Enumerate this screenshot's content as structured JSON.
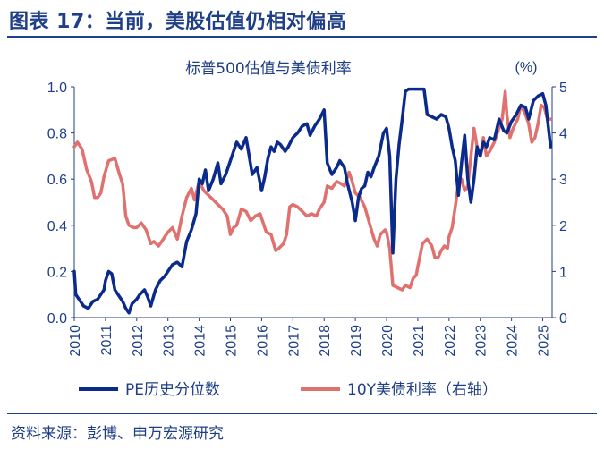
{
  "header": {
    "figure_title": "图表 17：当前，美股估值仍相对偏高"
  },
  "footer": {
    "source": "资料来源：彭博、申万宏源研究"
  },
  "colors": {
    "navy": "#1f3f86",
    "pe_line": "#0a2a8c",
    "yield_line": "#e0716f"
  },
  "chart_data": {
    "type": "line",
    "title": "标普500估值与美债利率",
    "right_unit": "(%)",
    "x_ticks": [
      "2010",
      "2011",
      "2012",
      "2013",
      "2014",
      "2015",
      "2016",
      "2017",
      "2018",
      "2019",
      "2020",
      "2021",
      "2022",
      "2023",
      "2024",
      "2025"
    ],
    "xlim": [
      2010,
      2025.3
    ],
    "y_left": {
      "lim": [
        0,
        1.0
      ],
      "ticks": [
        "0.0",
        "0.2",
        "0.4",
        "0.6",
        "0.8",
        "1.0"
      ]
    },
    "y_right": {
      "lim": [
        0,
        5
      ],
      "ticks": [
        "0",
        "1",
        "2",
        "3",
        "4",
        "5"
      ]
    },
    "legend_position": "bottom",
    "series": [
      {
        "name": "PE历史分位数",
        "axis": "left",
        "color": "#0a2a8c",
        "points": [
          [
            2010.0,
            0.2
          ],
          [
            2010.05,
            0.1
          ],
          [
            2010.15,
            0.08
          ],
          [
            2010.3,
            0.05
          ],
          [
            2010.45,
            0.04
          ],
          [
            2010.6,
            0.07
          ],
          [
            2010.75,
            0.08
          ],
          [
            2010.85,
            0.1
          ],
          [
            2010.95,
            0.12
          ],
          [
            2011.0,
            0.16
          ],
          [
            2011.1,
            0.2
          ],
          [
            2011.2,
            0.19
          ],
          [
            2011.3,
            0.12
          ],
          [
            2011.4,
            0.1
          ],
          [
            2011.55,
            0.07
          ],
          [
            2011.65,
            0.04
          ],
          [
            2011.75,
            0.02
          ],
          [
            2011.85,
            0.06
          ],
          [
            2012.0,
            0.08
          ],
          [
            2012.1,
            0.1
          ],
          [
            2012.25,
            0.12
          ],
          [
            2012.35,
            0.09
          ],
          [
            2012.45,
            0.05
          ],
          [
            2012.6,
            0.12
          ],
          [
            2012.75,
            0.16
          ],
          [
            2012.9,
            0.18
          ],
          [
            2013.0,
            0.2
          ],
          [
            2013.15,
            0.23
          ],
          [
            2013.3,
            0.24
          ],
          [
            2013.45,
            0.22
          ],
          [
            2013.6,
            0.33
          ],
          [
            2013.75,
            0.38
          ],
          [
            2013.9,
            0.45
          ],
          [
            2014.0,
            0.6
          ],
          [
            2014.1,
            0.58
          ],
          [
            2014.2,
            0.64
          ],
          [
            2014.3,
            0.55
          ],
          [
            2014.45,
            0.6
          ],
          [
            2014.6,
            0.67
          ],
          [
            2014.7,
            0.58
          ],
          [
            2014.85,
            0.62
          ],
          [
            2015.0,
            0.68
          ],
          [
            2015.1,
            0.72
          ],
          [
            2015.2,
            0.76
          ],
          [
            2015.35,
            0.73
          ],
          [
            2015.5,
            0.78
          ],
          [
            2015.6,
            0.7
          ],
          [
            2015.7,
            0.62
          ],
          [
            2015.85,
            0.65
          ],
          [
            2016.0,
            0.55
          ],
          [
            2016.1,
            0.61
          ],
          [
            2016.2,
            0.69
          ],
          [
            2016.3,
            0.74
          ],
          [
            2016.4,
            0.72
          ],
          [
            2016.5,
            0.76
          ],
          [
            2016.6,
            0.75
          ],
          [
            2016.75,
            0.72
          ],
          [
            2016.85,
            0.74
          ],
          [
            2017.0,
            0.78
          ],
          [
            2017.15,
            0.8
          ],
          [
            2017.3,
            0.83
          ],
          [
            2017.45,
            0.84
          ],
          [
            2017.55,
            0.79
          ],
          [
            2017.7,
            0.83
          ],
          [
            2017.85,
            0.86
          ],
          [
            2018.0,
            0.9
          ],
          [
            2018.1,
            0.67
          ],
          [
            2018.25,
            0.62
          ],
          [
            2018.4,
            0.65
          ],
          [
            2018.5,
            0.68
          ],
          [
            2018.65,
            0.65
          ],
          [
            2018.75,
            0.58
          ],
          [
            2018.9,
            0.5
          ],
          [
            2019.0,
            0.42
          ],
          [
            2019.1,
            0.52
          ],
          [
            2019.2,
            0.56
          ],
          [
            2019.3,
            0.57
          ],
          [
            2019.4,
            0.63
          ],
          [
            2019.5,
            0.61
          ],
          [
            2019.6,
            0.65
          ],
          [
            2019.75,
            0.7
          ],
          [
            2019.9,
            0.8
          ],
          [
            2020.0,
            0.82
          ],
          [
            2020.1,
            0.7
          ],
          [
            2020.2,
            0.28
          ],
          [
            2020.3,
            0.6
          ],
          [
            2020.4,
            0.75
          ],
          [
            2020.5,
            0.86
          ],
          [
            2020.6,
            0.98
          ],
          [
            2020.7,
            0.99
          ],
          [
            2020.85,
            0.99
          ],
          [
            2021.0,
            0.99
          ],
          [
            2021.2,
            0.99
          ],
          [
            2021.3,
            0.88
          ],
          [
            2021.45,
            0.87
          ],
          [
            2021.6,
            0.86
          ],
          [
            2021.75,
            0.88
          ],
          [
            2021.9,
            0.87
          ],
          [
            2022.0,
            0.82
          ],
          [
            2022.1,
            0.74
          ],
          [
            2022.2,
            0.68
          ],
          [
            2022.3,
            0.53
          ],
          [
            2022.4,
            0.67
          ],
          [
            2022.5,
            0.79
          ],
          [
            2022.6,
            0.6
          ],
          [
            2022.7,
            0.5
          ],
          [
            2022.8,
            0.6
          ],
          [
            2022.9,
            0.74
          ],
          [
            2023.0,
            0.7
          ],
          [
            2023.1,
            0.76
          ],
          [
            2023.2,
            0.74
          ],
          [
            2023.3,
            0.78
          ],
          [
            2023.45,
            0.77
          ],
          [
            2023.6,
            0.86
          ],
          [
            2023.75,
            0.81
          ],
          [
            2023.85,
            0.8
          ],
          [
            2024.0,
            0.85
          ],
          [
            2024.15,
            0.88
          ],
          [
            2024.3,
            0.92
          ],
          [
            2024.45,
            0.91
          ],
          [
            2024.55,
            0.86
          ],
          [
            2024.7,
            0.94
          ],
          [
            2024.85,
            0.96
          ],
          [
            2025.0,
            0.97
          ],
          [
            2025.1,
            0.92
          ],
          [
            2025.25,
            0.74
          ]
        ]
      },
      {
        "name": "10Y美债利率（右轴）",
        "axis": "right",
        "color": "#e0716f",
        "points": [
          [
            2010.0,
            3.7
          ],
          [
            2010.1,
            3.8
          ],
          [
            2010.25,
            3.65
          ],
          [
            2010.4,
            3.2
          ],
          [
            2010.55,
            2.95
          ],
          [
            2010.65,
            2.6
          ],
          [
            2010.75,
            2.6
          ],
          [
            2010.85,
            2.7
          ],
          [
            2010.95,
            3.05
          ],
          [
            2011.1,
            3.4
          ],
          [
            2011.3,
            3.45
          ],
          [
            2011.45,
            3.1
          ],
          [
            2011.55,
            2.9
          ],
          [
            2011.65,
            2.2
          ],
          [
            2011.75,
            2.0
          ],
          [
            2011.9,
            1.95
          ],
          [
            2012.0,
            1.95
          ],
          [
            2012.15,
            2.05
          ],
          [
            2012.3,
            1.9
          ],
          [
            2012.45,
            1.6
          ],
          [
            2012.55,
            1.65
          ],
          [
            2012.7,
            1.55
          ],
          [
            2012.85,
            1.7
          ],
          [
            2013.0,
            1.85
          ],
          [
            2013.15,
            1.95
          ],
          [
            2013.3,
            1.7
          ],
          [
            2013.45,
            2.2
          ],
          [
            2013.6,
            2.6
          ],
          [
            2013.75,
            2.8
          ],
          [
            2013.85,
            2.55
          ],
          [
            2014.0,
            2.95
          ],
          [
            2014.15,
            2.75
          ],
          [
            2014.3,
            2.65
          ],
          [
            2014.45,
            2.55
          ],
          [
            2014.6,
            2.45
          ],
          [
            2014.75,
            2.35
          ],
          [
            2014.9,
            2.2
          ],
          [
            2015.0,
            1.8
          ],
          [
            2015.1,
            1.95
          ],
          [
            2015.2,
            2.0
          ],
          [
            2015.35,
            2.35
          ],
          [
            2015.5,
            2.3
          ],
          [
            2015.65,
            2.1
          ],
          [
            2015.8,
            2.2
          ],
          [
            2015.95,
            2.25
          ],
          [
            2016.0,
            2.15
          ],
          [
            2016.15,
            1.85
          ],
          [
            2016.3,
            1.8
          ],
          [
            2016.45,
            1.45
          ],
          [
            2016.55,
            1.5
          ],
          [
            2016.7,
            1.6
          ],
          [
            2016.8,
            1.8
          ],
          [
            2016.9,
            2.4
          ],
          [
            2017.0,
            2.45
          ],
          [
            2017.15,
            2.4
          ],
          [
            2017.3,
            2.3
          ],
          [
            2017.45,
            2.2
          ],
          [
            2017.6,
            2.25
          ],
          [
            2017.75,
            2.2
          ],
          [
            2017.85,
            2.35
          ],
          [
            2018.0,
            2.5
          ],
          [
            2018.1,
            2.85
          ],
          [
            2018.25,
            2.8
          ],
          [
            2018.4,
            2.95
          ],
          [
            2018.55,
            2.9
          ],
          [
            2018.65,
            2.85
          ],
          [
            2018.8,
            3.15
          ],
          [
            2018.9,
            2.95
          ],
          [
            2019.0,
            2.7
          ],
          [
            2019.15,
            2.6
          ],
          [
            2019.3,
            2.4
          ],
          [
            2019.45,
            2.05
          ],
          [
            2019.6,
            1.7
          ],
          [
            2019.7,
            1.55
          ],
          [
            2019.8,
            1.8
          ],
          [
            2019.95,
            1.9
          ],
          [
            2020.0,
            1.85
          ],
          [
            2020.1,
            1.5
          ],
          [
            2020.2,
            0.7
          ],
          [
            2020.35,
            0.65
          ],
          [
            2020.5,
            0.6
          ],
          [
            2020.6,
            0.7
          ],
          [
            2020.75,
            0.65
          ],
          [
            2020.85,
            0.85
          ],
          [
            2020.95,
            0.92
          ],
          [
            2021.0,
            1.1
          ],
          [
            2021.15,
            1.6
          ],
          [
            2021.3,
            1.7
          ],
          [
            2021.45,
            1.55
          ],
          [
            2021.55,
            1.3
          ],
          [
            2021.65,
            1.3
          ],
          [
            2021.75,
            1.45
          ],
          [
            2021.85,
            1.55
          ],
          [
            2021.95,
            1.5
          ],
          [
            2022.0,
            1.75
          ],
          [
            2022.1,
            1.95
          ],
          [
            2022.2,
            2.4
          ],
          [
            2022.3,
            2.9
          ],
          [
            2022.4,
            3.0
          ],
          [
            2022.5,
            2.75
          ],
          [
            2022.6,
            2.85
          ],
          [
            2022.7,
            3.5
          ],
          [
            2022.8,
            4.1
          ],
          [
            2022.9,
            3.7
          ],
          [
            2023.0,
            3.5
          ],
          [
            2023.1,
            3.9
          ],
          [
            2023.2,
            3.5
          ],
          [
            2023.3,
            3.6
          ],
          [
            2023.45,
            3.8
          ],
          [
            2023.55,
            4.0
          ],
          [
            2023.7,
            4.3
          ],
          [
            2023.8,
            4.9
          ],
          [
            2023.85,
            4.4
          ],
          [
            2023.95,
            3.9
          ],
          [
            2024.05,
            4.1
          ],
          [
            2024.2,
            4.3
          ],
          [
            2024.3,
            4.6
          ],
          [
            2024.45,
            4.4
          ],
          [
            2024.55,
            4.2
          ],
          [
            2024.65,
            3.8
          ],
          [
            2024.75,
            3.9
          ],
          [
            2024.85,
            4.2
          ],
          [
            2024.95,
            4.6
          ],
          [
            2025.05,
            4.55
          ],
          [
            2025.15,
            4.3
          ],
          [
            2025.25,
            4.3
          ]
        ]
      }
    ]
  }
}
